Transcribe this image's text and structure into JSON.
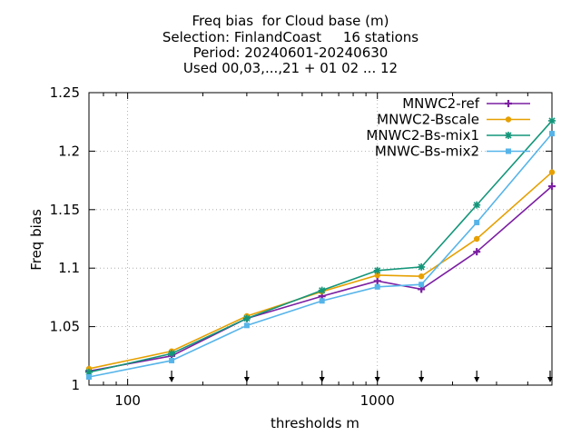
{
  "chart_data": {
    "type": "line",
    "title_lines": [
      "Freq bias  for Cloud base (m)",
      "Selection: FinlandCoast     16 stations",
      "Period: 20240601-20240630",
      "Used 00,03,...,21 + 01 02 ... 12"
    ],
    "xlabel": "thresholds m",
    "ylabel": "Freq bias",
    "x_scale": "log",
    "xlim": [
      70,
      5000
    ],
    "ylim": [
      1,
      1.25
    ],
    "x_ticks": [
      100,
      1000
    ],
    "x_tick_labels": [
      "100",
      "1000"
    ],
    "y_ticks": [
      1,
      1.05,
      1.1,
      1.15,
      1.2,
      1.25
    ],
    "y_tick_labels": [
      "1",
      "1.05",
      "1.1",
      "1.15",
      "1.2",
      "1.25"
    ],
    "grid": true,
    "legend_position": "top-right",
    "x": [
      70,
      150,
      300,
      600,
      1000,
      1500,
      2500,
      5000
    ],
    "arrow_markers_x": [
      150,
      300,
      600,
      1000,
      1500,
      2500,
      5000
    ],
    "series": [
      {
        "name": "MNWC2-ref",
        "color": "#7b1fa2",
        "marker": "plus",
        "values": [
          1.012,
          1.025,
          1.057,
          1.076,
          1.089,
          1.082,
          1.114,
          1.17
        ]
      },
      {
        "name": "MNWC2-Bscale",
        "color": "#e6a000",
        "marker": "circle",
        "values": [
          1.014,
          1.029,
          1.059,
          1.08,
          1.094,
          1.093,
          1.125,
          1.182
        ]
      },
      {
        "name": "MNWC2-Bs-mix1",
        "color": "#14967a",
        "marker": "star",
        "values": [
          1.011,
          1.027,
          1.057,
          1.081,
          1.098,
          1.101,
          1.154,
          1.226
        ]
      },
      {
        "name": "MNWC-Bs-mix2",
        "color": "#56b4e9",
        "marker": "square",
        "values": [
          1.007,
          1.021,
          1.051,
          1.072,
          1.084,
          1.086,
          1.139,
          1.215
        ]
      }
    ]
  }
}
